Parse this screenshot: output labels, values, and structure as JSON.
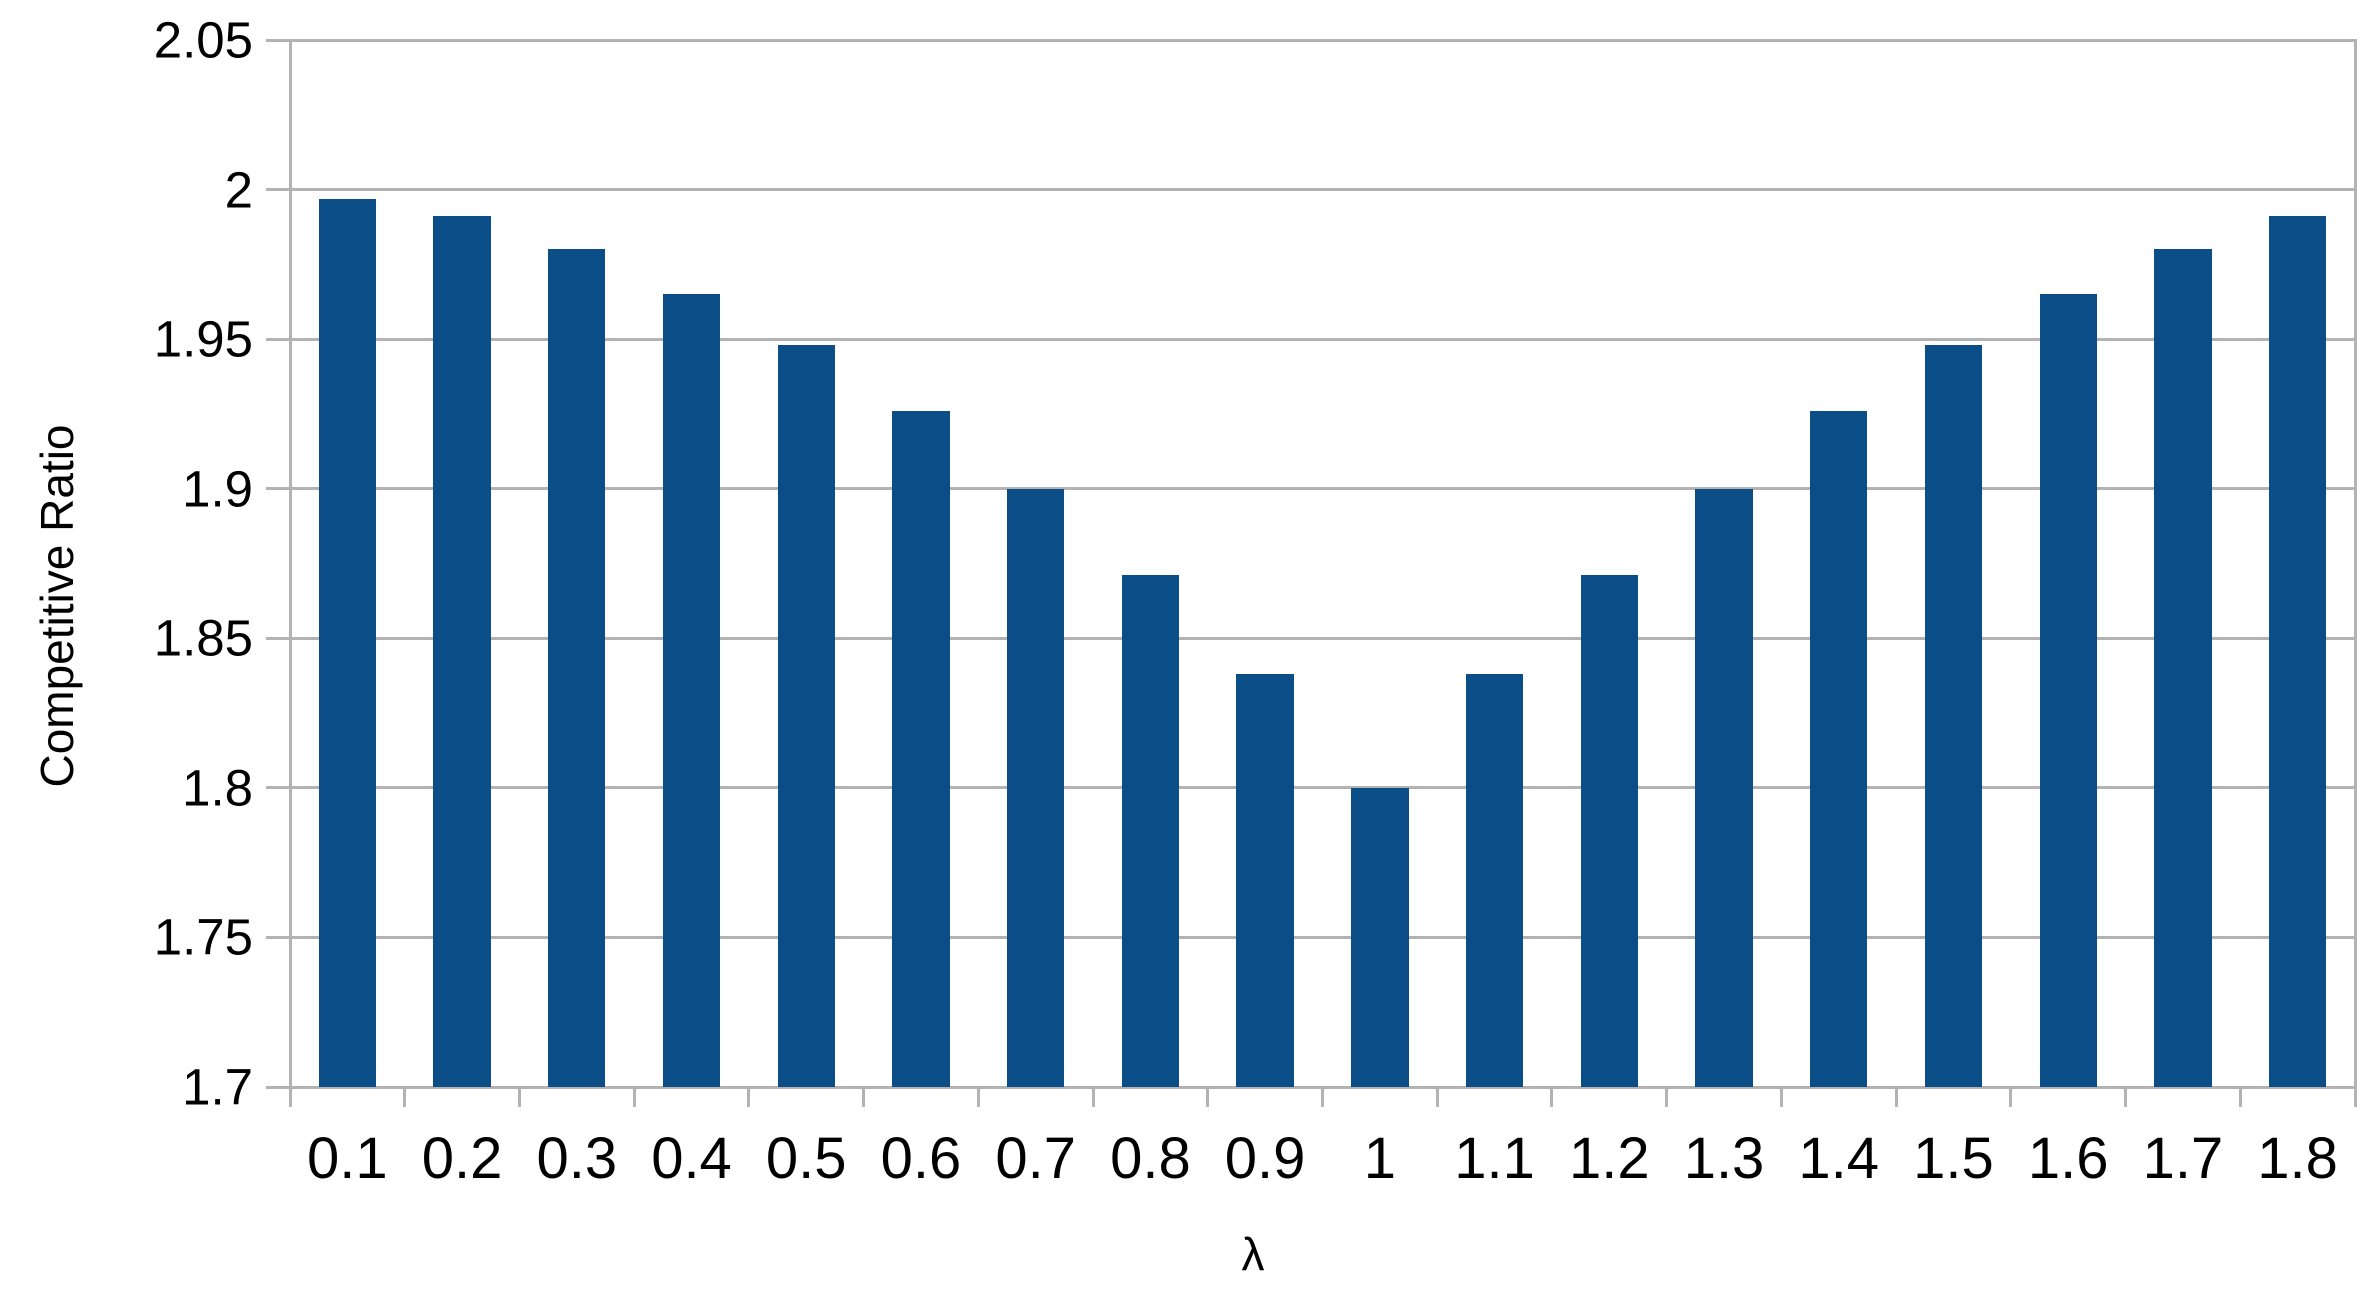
{
  "chart_data": {
    "type": "bar",
    "title": "",
    "xlabel": "λ",
    "ylabel": "Competitive Ratio",
    "categories": [
      "0.1",
      "0.2",
      "0.3",
      "0.4",
      "0.5",
      "0.6",
      "0.7",
      "0.8",
      "0.9",
      "1",
      "1.1",
      "1.2",
      "1.3",
      "1.4",
      "1.5",
      "1.6",
      "1.7",
      "1.8"
    ],
    "values": [
      1.997,
      1.991,
      1.98,
      1.965,
      1.948,
      1.926,
      1.9,
      1.871,
      1.838,
      1.8,
      1.838,
      1.871,
      1.9,
      1.926,
      1.948,
      1.965,
      1.98,
      1.991
    ],
    "ylim": [
      1.7,
      2.05
    ],
    "ytick_values": [
      2.05,
      2.0,
      1.95,
      1.9,
      1.85,
      1.8,
      1.75,
      1.7
    ],
    "ytick_labels": [
      "2.05",
      "2",
      "1.95",
      "1.9",
      "1.85",
      "1.8",
      "1.75",
      "1.7"
    ],
    "grid": "horizontal",
    "legend": "none",
    "colors": {
      "bar": "#0a4d87",
      "gridline": "#b3b3b3",
      "axis": "#b3b3b3",
      "text": "#000000",
      "background": "#ffffff"
    }
  }
}
